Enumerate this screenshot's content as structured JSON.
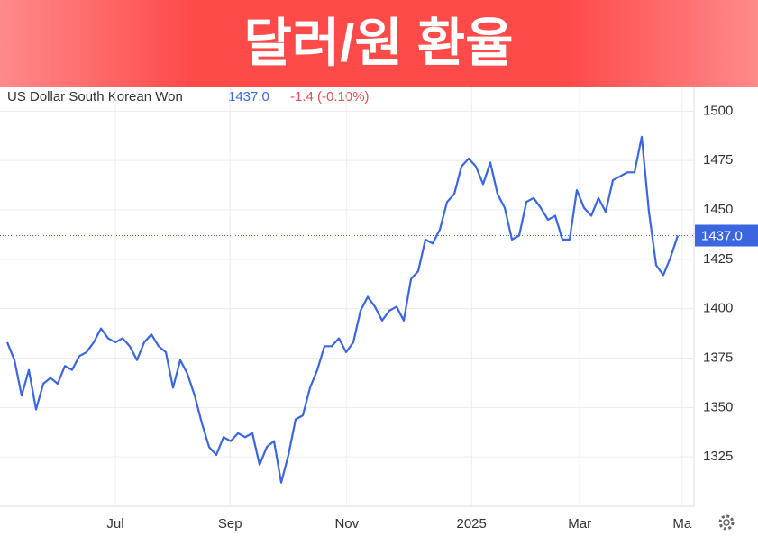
{
  "chart_data": {
    "type": "line",
    "title": "달러/원 환율",
    "series": [
      {
        "name": "US Dollar South Korean Won",
        "color": "#3a66e0",
        "values": [
          1383,
          1374,
          1356,
          1369,
          1349,
          1362,
          1365,
          1362,
          1371,
          1369,
          1376,
          1378,
          1383,
          1390,
          1385,
          1383,
          1385,
          1381,
          1374,
          1383,
          1387,
          1381,
          1378,
          1360,
          1374,
          1367,
          1356,
          1342,
          1330,
          1326,
          1335,
          1333,
          1337,
          1335,
          1337,
          1321,
          1330,
          1333,
          1312,
          1326,
          1344,
          1346,
          1360,
          1369,
          1381,
          1381,
          1385,
          1378,
          1383,
          1399,
          1406,
          1401,
          1394,
          1399,
          1401,
          1394,
          1415,
          1419,
          1435,
          1433,
          1440,
          1454,
          1458,
          1472,
          1476,
          1472,
          1463,
          1474,
          1458,
          1451,
          1435,
          1437,
          1454,
          1456,
          1451,
          1445,
          1447,
          1435,
          1435,
          1460,
          1451,
          1447,
          1456,
          1449,
          1465,
          1467,
          1469,
          1469,
          1487,
          1449,
          1422,
          1417,
          1426,
          1437
        ]
      }
    ],
    "quote": {
      "price": "1437.0",
      "change": "-1.4 (-0.10%)"
    },
    "ylim": [
      1300,
      1512
    ],
    "yticks": [
      1325,
      1350,
      1375,
      1400,
      1425,
      1450,
      1475,
      1500
    ],
    "xlim": [
      -1,
      95.25
    ],
    "xticks": [
      {
        "value": 15,
        "label": "Jul"
      },
      {
        "value": 30.9,
        "label": "Sep"
      },
      {
        "value": 47.1,
        "label": "Nov"
      },
      {
        "value": 64.4,
        "label": "2025"
      },
      {
        "value": 79.4,
        "label": "Mar"
      },
      {
        "value": 93.6,
        "label": "Ma"
      }
    ],
    "grid": true
  }
}
